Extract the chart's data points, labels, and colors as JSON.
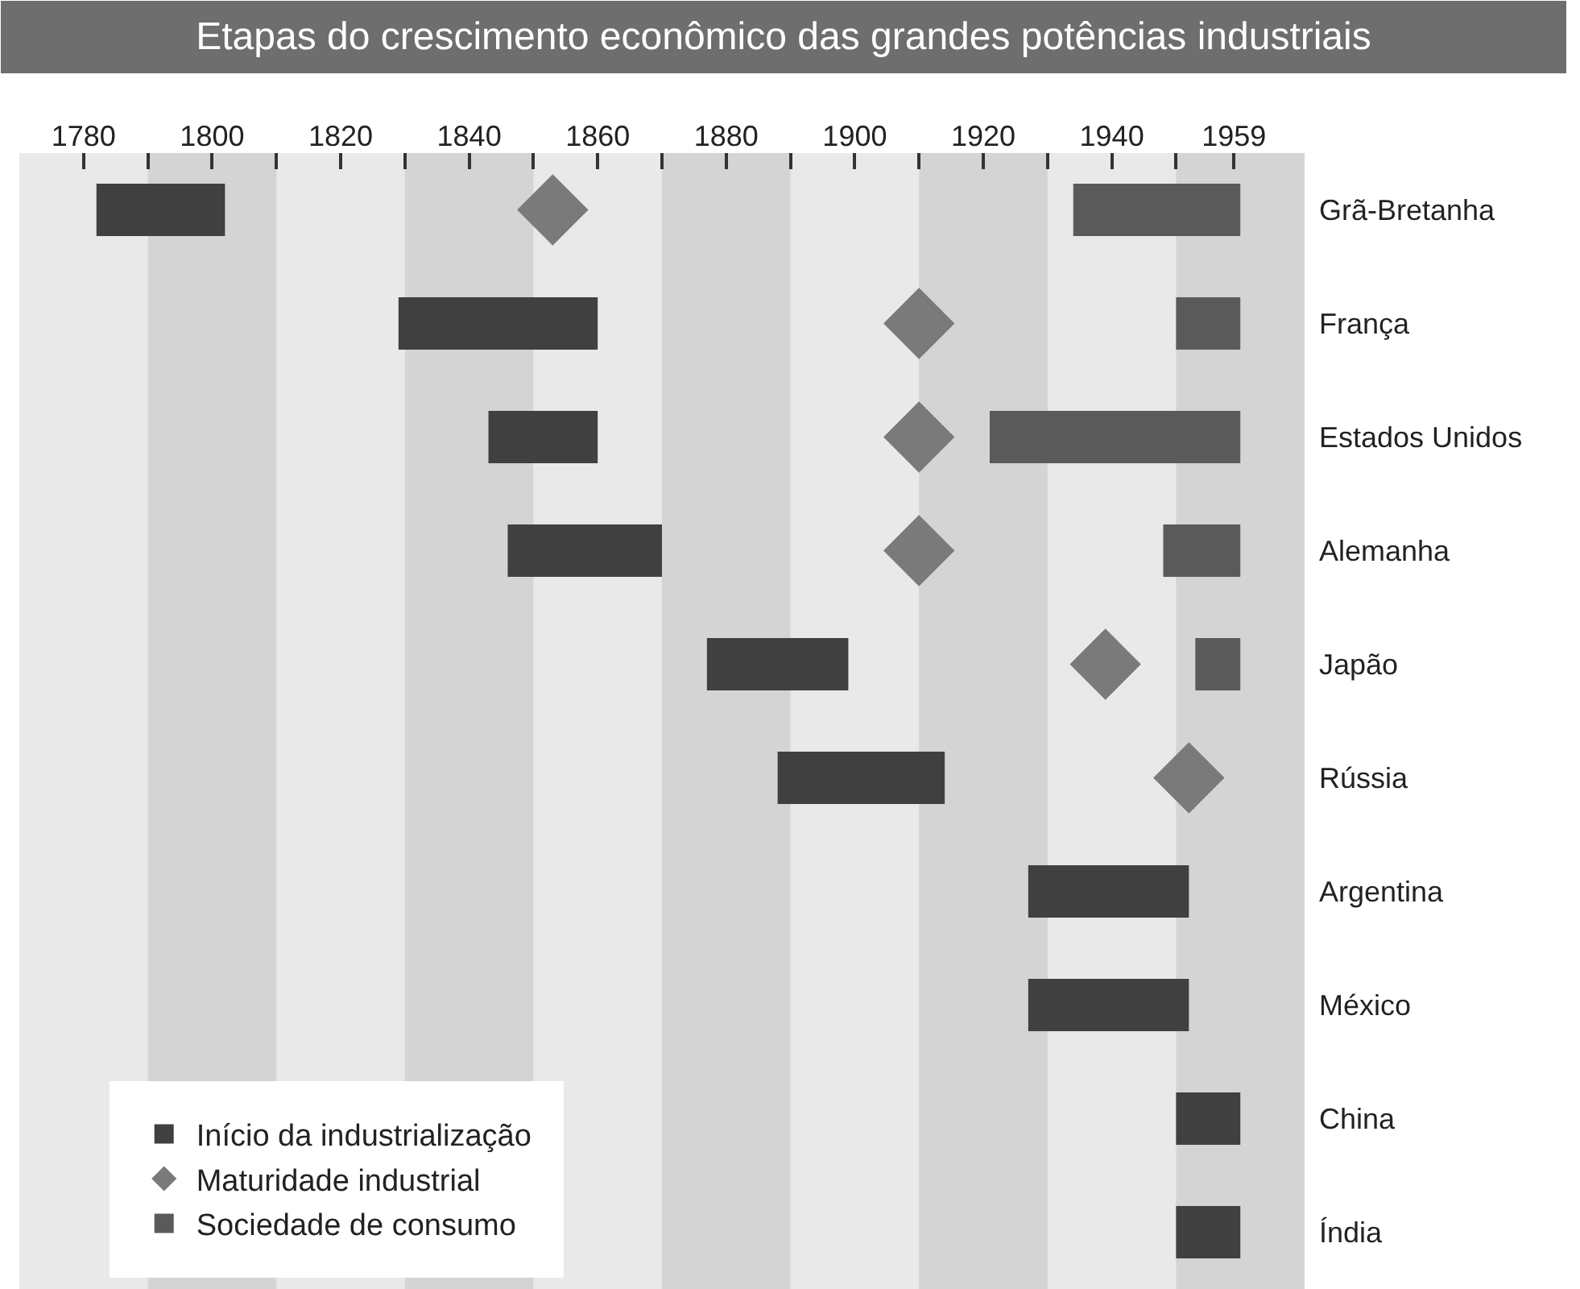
{
  "chart_data": {
    "type": "bar",
    "orientation": "horizontal",
    "title": "Etapas do crescimento econômico das grandes potências industriais",
    "categories": [
      "Grã-Bretanha",
      "França",
      "Estados Unidos",
      "Alemanha",
      "Japão",
      "Rússia",
      "Argentina",
      "México",
      "China",
      "Índia"
    ],
    "xlim": [
      1770,
      1970
    ],
    "xticks": [
      1780,
      {
        "value": 1790,
        "label": null
      },
      1800,
      {
        "value": 1810,
        "label": null
      },
      1820,
      {
        "value": 1830,
        "label": null
      },
      1840,
      {
        "value": 1850,
        "label": null
      },
      1860,
      {
        "value": 1870,
        "label": null
      },
      1880,
      {
        "value": 1890,
        "label": null
      },
      1900,
      {
        "value": 1910,
        "label": null
      },
      1920,
      {
        "value": 1930,
        "label": null
      },
      1940,
      {
        "value": 1950,
        "label": null
      },
      1959
    ],
    "series": [
      {
        "name": "Início da industrialização",
        "color": "#404040",
        "base": [
          1782,
          1829,
          1843,
          1846,
          1877,
          1888,
          1927,
          1927,
          1950,
          1950
        ],
        "values": [
          20,
          31,
          17,
          24,
          22,
          26,
          25,
          25,
          10,
          10
        ]
      },
      {
        "name": "Maturidade industrial",
        "type": "scatter",
        "color": "#7a7a7a",
        "values": [
          1853,
          1910,
          1910,
          1910,
          1939,
          1952,
          null,
          null,
          null,
          null
        ]
      },
      {
        "name": "Sociedade de consumo",
        "color": "#5a5a5a",
        "base": [
          1934,
          1950,
          1921,
          1948,
          1953,
          null,
          null,
          null,
          null,
          null
        ],
        "values": [
          26,
          10,
          39,
          12,
          7,
          null,
          null,
          null,
          null,
          null
        ]
      }
    ],
    "bands": [
      {
        "axis": "x",
        "from": 1790,
        "to": 1810,
        "color": "#d4d4d4"
      },
      {
        "axis": "x",
        "from": 1830,
        "to": 1850,
        "color": "#d4d4d4"
      },
      {
        "axis": "x",
        "from": 1870,
        "to": 1890,
        "color": "#d4d4d4"
      },
      {
        "axis": "x",
        "from": 1910,
        "to": 1930,
        "color": "#d4d4d4"
      },
      {
        "axis": "x",
        "from": 1950,
        "to": 1970,
        "color": "#d4d4d4"
      }
    ],
    "marker": "diamond",
    "legend": "bottom left",
    "grid": false
  }
}
